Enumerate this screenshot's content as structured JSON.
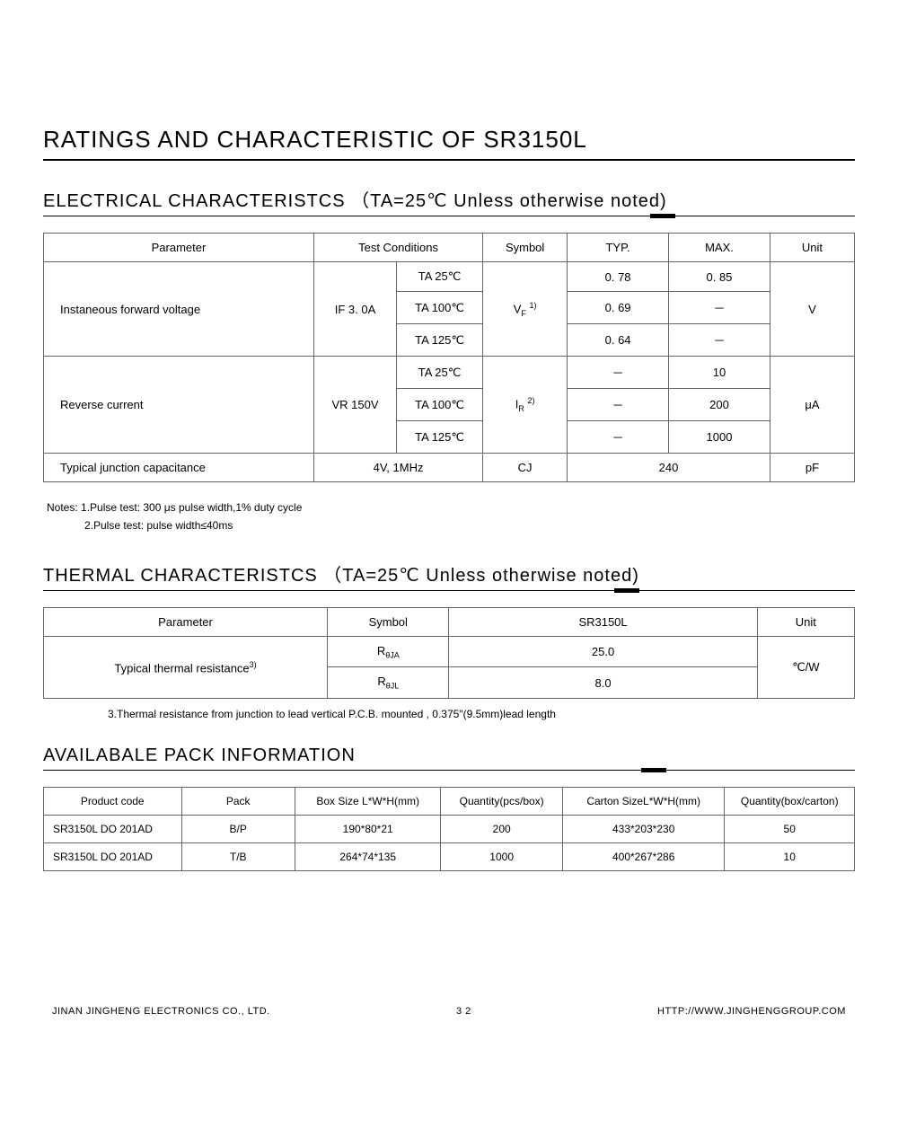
{
  "title": "RATINGS  AND  CHARACTERISTIC  OF  SR3150L",
  "sections": {
    "elec": {
      "title": "ELECTRICAL  CHARACTERISTCS （TA=25℃  Unless  otherwise  noted)",
      "headers": {
        "parameter": "Parameter",
        "test_conditions": "Test Conditions",
        "symbol": "Symbol",
        "typ": "TYP.",
        "max": "MAX.",
        "unit": "Unit"
      },
      "rows": {
        "ifv": {
          "param": "Instaneous forward voltage",
          "cond1": "IF  3. 0A",
          "cond2": [
            "TA  25℃",
            "TA  100℃",
            "TA  125℃"
          ],
          "symbol_html": "V<span class=\"sub\">F</span> <span class=\"sup\">1)</span>",
          "typ": [
            "0. 78",
            "0. 69",
            "0. 64"
          ],
          "max": [
            "0. 85",
            "－",
            "－"
          ],
          "unit": "V"
        },
        "ir": {
          "param": "Reverse current",
          "cond1": "VR  150V",
          "cond2": [
            "TA  25℃",
            "TA  100℃",
            "TA  125℃"
          ],
          "symbol_html": "I<span class=\"sub\">R</span> <span class=\"sup\">2)</span>",
          "typ": [
            "－",
            "－",
            "－"
          ],
          "max": [
            "10",
            "200",
            "1000"
          ],
          "unit": "μA"
        },
        "cj": {
          "param": "Typical junction capacitance",
          "cond": "4V, 1MHz",
          "symbol": "CJ",
          "val": "240",
          "unit": "pF"
        }
      },
      "notes": [
        "Notes: 1.Pulse test: 300 μs pulse width,1% duty cycle",
        "2.Pulse test: pulse width≤40ms"
      ]
    },
    "thermal": {
      "title": "THERMAL  CHARACTERISTCS （TA=25℃  Unless  otherwise  noted)",
      "headers": {
        "parameter": "Parameter",
        "symbol": "Symbol",
        "value_col": "SR3150L",
        "unit": "Unit"
      },
      "param": "Typical thermal resistance",
      "param_sup": "3)",
      "rows": [
        {
          "symbol_html": "R<span class=\"sub\">θJA</span>",
          "value": "25.0"
        },
        {
          "symbol_html": "R<span class=\"sub\">θJL</span>",
          "value": "8.0"
        }
      ],
      "unit": "℃/W",
      "note3": "3.Thermal resistance from junction to lead vertical P.C.B. mounted , 0.375\"(9.5mm)lead length"
    },
    "pack": {
      "title": "AVAILABALE  PACK  INFORMATION",
      "headers": {
        "code": "Product code",
        "pack": "Pack",
        "box": "Box Size L*W*H(mm)",
        "qty_box": "Quantity(pcs/box)",
        "carton": "Carton SizeL*W*H(mm)",
        "qty_carton": "Quantity(box/carton)"
      },
      "rows": [
        {
          "code": "SR3150L DO 201AD",
          "pack": "B/P",
          "box": "190*80*21",
          "qty_box": "200",
          "carton": "433*203*230",
          "qty_carton": "50"
        },
        {
          "code": "SR3150L DO 201AD",
          "pack": "T/B",
          "box": "264*74*135",
          "qty_box": "1000",
          "carton": "400*267*286",
          "qty_carton": "10"
        }
      ]
    }
  },
  "footer": {
    "left": "JINAN JINGHENG ELECTRONICS   CO., LTD.",
    "center": "3 2",
    "right": "HTTP://WWW.JINGHENGGROUP.COM"
  }
}
